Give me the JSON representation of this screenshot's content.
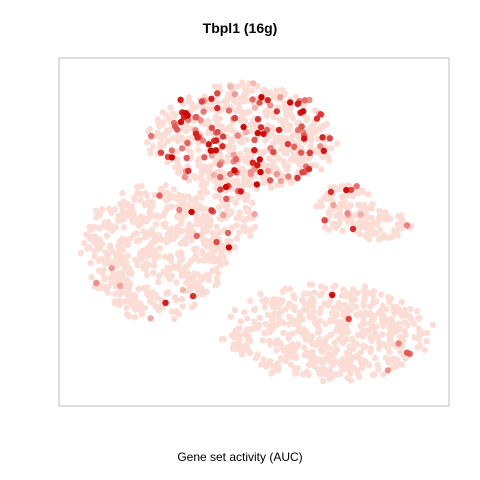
{
  "chart_data": {
    "type": "scatter",
    "title": "Tbpl1 (16g)",
    "xlabel": "Gene set activity (AUC)",
    "ylabel": "",
    "grid": false,
    "legend": "none",
    "color_scale": {
      "low": "#fcddd6",
      "high": "#cc0000"
    },
    "xlim": [
      0,
      100
    ],
    "ylim": [
      0,
      100
    ],
    "clusters": [
      {
        "cx": 24,
        "cy": 56,
        "rx": 20,
        "ry": 21,
        "n": 520,
        "hot": 0.03
      },
      {
        "cx": 47,
        "cy": 22,
        "rx": 26,
        "ry": 17,
        "n": 640,
        "hot": 0.22
      },
      {
        "cx": 42,
        "cy": 44,
        "rx": 9,
        "ry": 14,
        "n": 130,
        "hot": 0.08
      },
      {
        "cx": 69,
        "cy": 80,
        "rx": 29,
        "ry": 15,
        "n": 560,
        "hot": 0.01
      },
      {
        "cx": 74,
        "cy": 43,
        "rx": 8,
        "ry": 8,
        "n": 95,
        "hot": 0.1
      },
      {
        "cx": 84,
        "cy": 48,
        "rx": 8,
        "ry": 5,
        "n": 60,
        "hot": 0.02
      }
    ]
  }
}
